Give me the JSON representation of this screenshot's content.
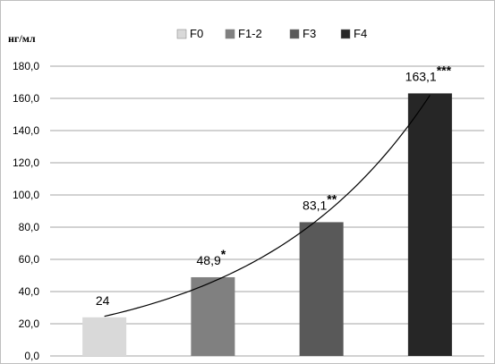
{
  "chart_data": {
    "type": "bar",
    "ylabel": "нг/мл",
    "ylim": [
      0,
      180
    ],
    "yticks": [
      "0,0",
      "20,0",
      "40,0",
      "60,0",
      "80,0",
      "100,0",
      "120,0",
      "140,0",
      "160,0",
      "180,0"
    ],
    "grid": true,
    "legend_position": "top",
    "categories": [
      "F0",
      "F1-2",
      "F3",
      "F4"
    ],
    "values": [
      24,
      48.9,
      83.1,
      163.1
    ],
    "data_labels": [
      "24",
      "48,9",
      "83,1",
      "163,1"
    ],
    "significance": [
      "",
      "*",
      "**",
      "***"
    ],
    "colors": [
      "#d9d9d9",
      "#808080",
      "#595959",
      "#262626"
    ],
    "trendline": "exponential"
  }
}
